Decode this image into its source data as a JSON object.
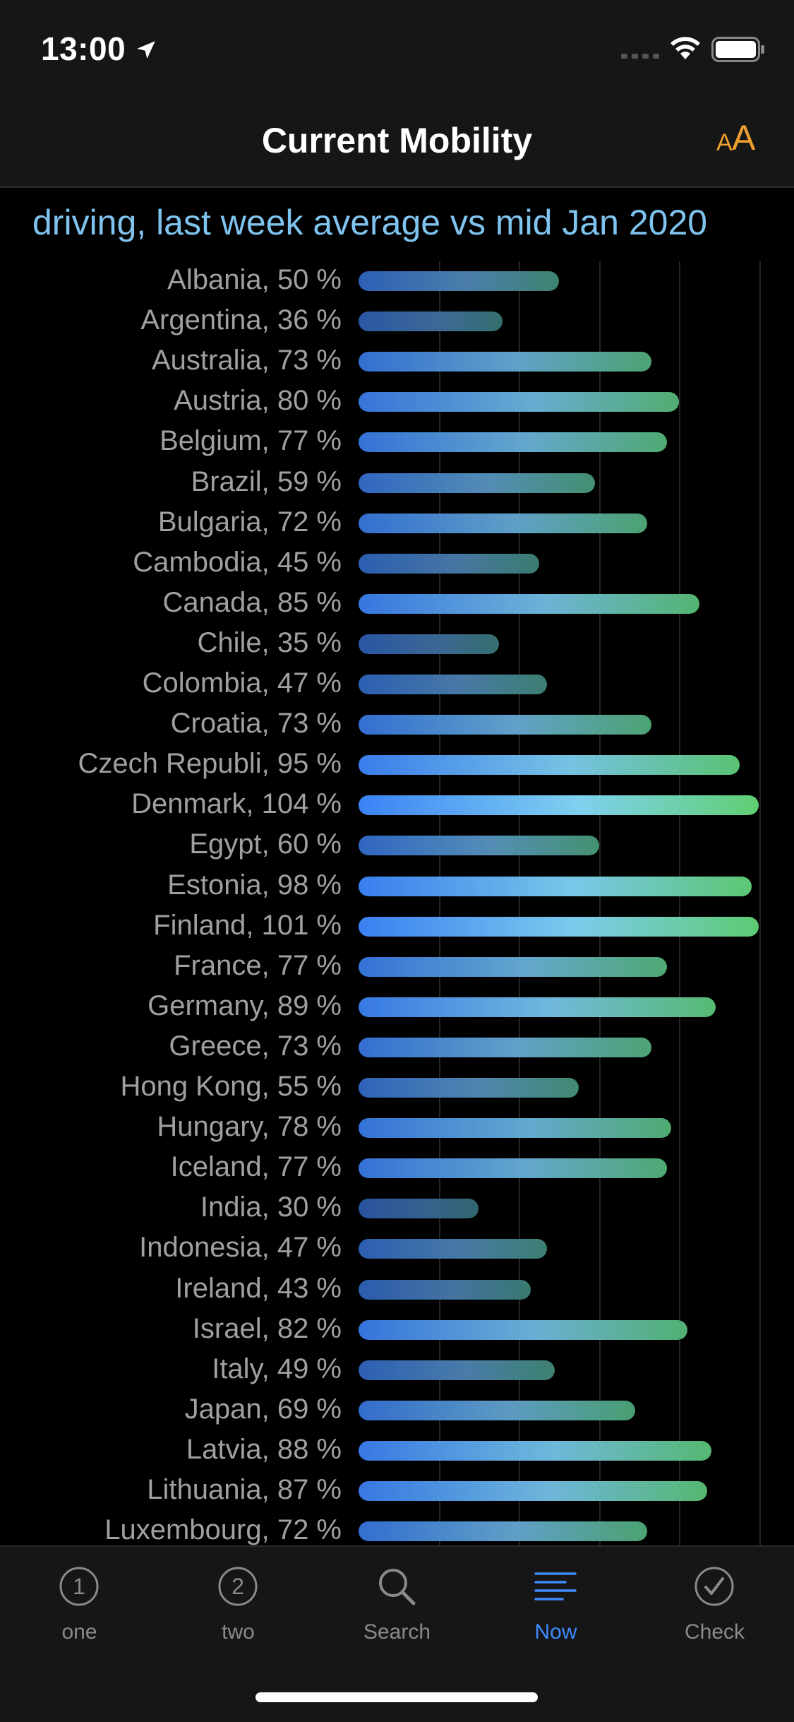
{
  "status_bar": {
    "time": "13:00",
    "icons": [
      "location-arrow-icon",
      "signal-icon",
      "wifi-icon",
      "battery-icon"
    ]
  },
  "nav": {
    "title": "Current Mobility",
    "text_size_button": {
      "small": "A",
      "big": "A",
      "icon": "text-size-icon"
    }
  },
  "chart": {
    "subtitle": "driving, last week average vs mid Jan 2020"
  },
  "chart_data": {
    "type": "bar",
    "orientation": "horizontal",
    "title": "driving, last week average vs mid Jan 2020",
    "categories": [
      "Albania",
      "Argentina",
      "Australia",
      "Austria",
      "Belgium",
      "Brazil",
      "Bulgaria",
      "Cambodia",
      "Canada",
      "Chile",
      "Colombia",
      "Croatia",
      "Czech Republi",
      "Denmark",
      "Egypt",
      "Estonia",
      "Finland",
      "France",
      "Germany",
      "Greece",
      "Hong Kong",
      "Hungary",
      "Iceland",
      "India",
      "Indonesia",
      "Ireland",
      "Israel",
      "Italy",
      "Japan",
      "Latvia",
      "Lithuania",
      "Luxembourg"
    ],
    "labels": [
      "Albania, 50 %",
      "Argentina, 36 %",
      "Australia, 73 %",
      "Austria, 80 %",
      "Belgium, 77 %",
      "Brazil, 59 %",
      "Bulgaria, 72 %",
      "Cambodia, 45 %",
      "Canada, 85 %",
      "Chile, 35 %",
      "Colombia, 47 %",
      "Croatia, 73 %",
      "Czech Republi, 95 %",
      "Denmark, 104 %",
      "Egypt, 60 %",
      "Estonia, 98 %",
      "Finland, 101 %",
      "France, 77 %",
      "Germany, 89 %",
      "Greece, 73 %",
      "Hong Kong, 55 %",
      "Hungary, 78 %",
      "Iceland, 77 %",
      "India, 30 %",
      "Indonesia, 47 %",
      "Ireland, 43 %",
      "Israel, 82 %",
      "Italy, 49 %",
      "Japan, 69 %",
      "Latvia, 88 %",
      "Lithuania, 87 %",
      "Luxembourg, 72 %"
    ],
    "values": [
      50,
      36,
      73,
      80,
      77,
      59,
      72,
      45,
      85,
      35,
      47,
      73,
      95,
      104,
      60,
      98,
      101,
      77,
      89,
      73,
      55,
      78,
      77,
      30,
      47,
      43,
      82,
      49,
      69,
      88,
      87,
      72
    ],
    "unit": "%",
    "xlim": [
      0,
      100
    ],
    "grid": true,
    "colors": {
      "low": "#1e3a6e",
      "mid": "#3b82f6",
      "light": "#7fd0f0",
      "high": "#5fcf72"
    }
  },
  "tabs": [
    {
      "label": "one",
      "icon": "circled-one-icon",
      "active": false
    },
    {
      "label": "two",
      "icon": "circled-two-icon",
      "active": false
    },
    {
      "label": "Search",
      "icon": "search-icon",
      "active": false
    },
    {
      "label": "Now",
      "icon": "list-lines-icon",
      "active": true
    },
    {
      "label": "Check",
      "icon": "check-circle-icon",
      "active": false
    }
  ],
  "colors": {
    "accent": "#3d8bfd",
    "text_size": "#f0a030",
    "subtitle": "#7fc3ef"
  }
}
